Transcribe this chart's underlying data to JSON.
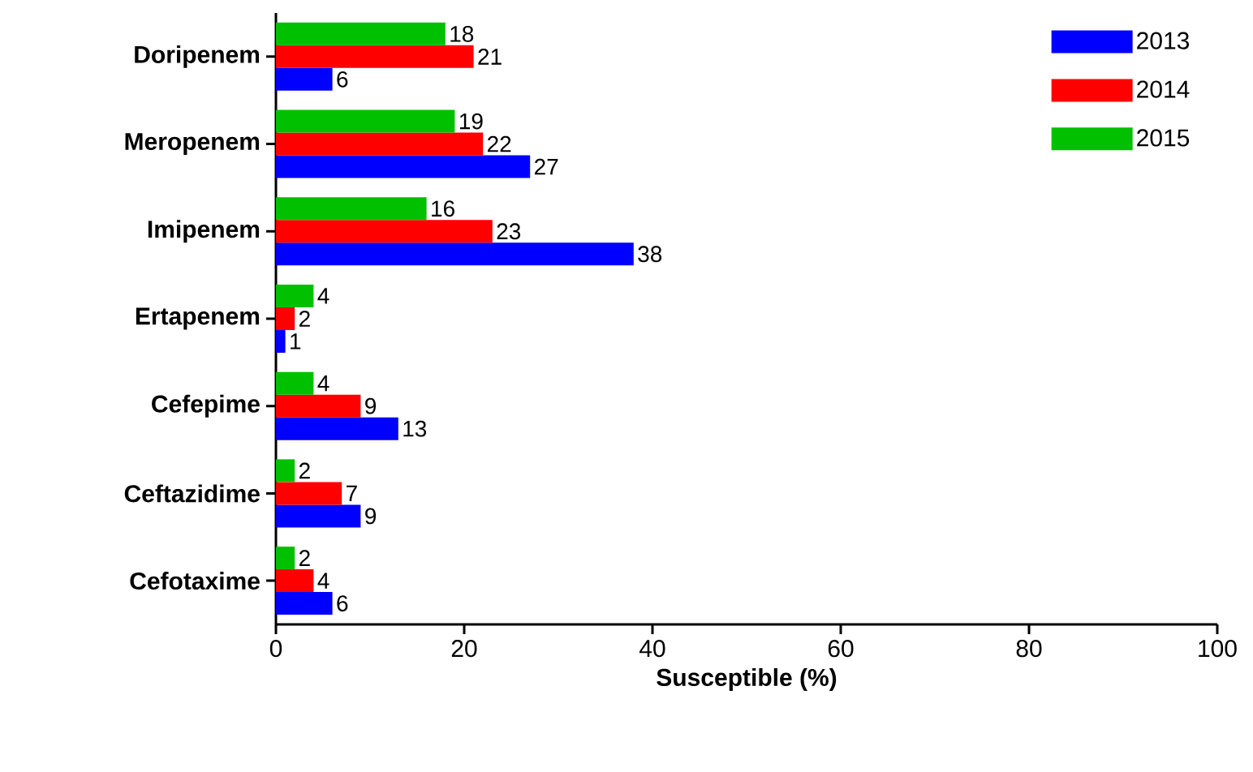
{
  "chart_data": {
    "type": "bar",
    "orientation": "horizontal",
    "xlabel": "Susceptible (%)",
    "categories": [
      "Doripenem",
      "Meropenem",
      "Imipenem",
      "Ertapenem",
      "Cefepime",
      "Ceftazidime",
      "Cefotaxime"
    ],
    "series": [
      {
        "name": "2013",
        "color": "#0000ff",
        "values": [
          6,
          27,
          38,
          1,
          13,
          9,
          6
        ]
      },
      {
        "name": "2014",
        "color": "#ff0000",
        "values": [
          21,
          22,
          23,
          2,
          9,
          7,
          4
        ]
      },
      {
        "name": "2015",
        "color": "#00c000",
        "values": [
          18,
          19,
          16,
          4,
          4,
          2,
          2
        ]
      }
    ],
    "xlim": [
      0,
      100
    ],
    "xticks": [
      0,
      20,
      40,
      60,
      80,
      100
    ],
    "data_labels": true,
    "legend": "top right",
    "grid": false
  }
}
